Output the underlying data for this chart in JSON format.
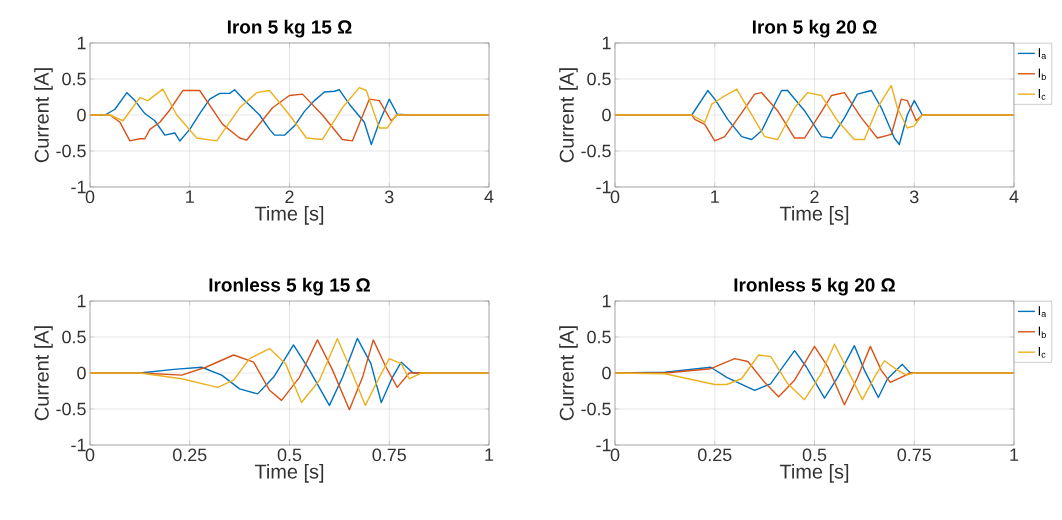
{
  "chart_data": [
    {
      "type": "line",
      "title": "Iron 5 kg 15 Ω",
      "xlabel": "Time [s]",
      "ylabel": "Current [A]",
      "xlim": [
        0,
        4
      ],
      "ylim": [
        -1,
        1
      ],
      "xticks": [
        0,
        1,
        2,
        3,
        4
      ],
      "yticks": [
        -1,
        -0.5,
        0,
        0.5,
        1
      ],
      "grid": true,
      "series": [
        {
          "color": "#0072bd",
          "x": [
            0,
            0.15,
            0.25,
            0.37,
            0.45,
            0.55,
            0.65,
            0.75,
            0.85,
            0.9,
            1.0,
            1.1,
            1.2,
            1.3,
            1.4,
            1.45,
            1.55,
            1.7,
            1.8,
            1.85,
            1.95,
            2.05,
            2.15,
            2.25,
            2.35,
            2.45,
            2.5,
            2.6,
            2.75,
            2.82,
            2.9,
            3.0,
            3.08,
            3.2,
            4
          ],
          "values": [
            0,
            0,
            0.08,
            0.31,
            0.2,
            0.02,
            -0.08,
            -0.28,
            -0.25,
            -0.36,
            -0.2,
            0.02,
            0.22,
            0.3,
            0.3,
            0.35,
            0.2,
            0,
            -0.2,
            -0.28,
            -0.28,
            -0.15,
            0.05,
            0.2,
            0.32,
            0.33,
            0.35,
            0.15,
            -0.1,
            -0.41,
            -0.1,
            0.22,
            0.01,
            0,
            0
          ]
        },
        {
          "color": "#d95319",
          "x": [
            0,
            0.2,
            0.3,
            0.4,
            0.5,
            0.55,
            0.6,
            0.7,
            0.8,
            0.93,
            1.1,
            1.33,
            1.5,
            1.57,
            1.83,
            2.0,
            2.13,
            2.33,
            2.53,
            2.63,
            2.8,
            2.9,
            3.02,
            3.08,
            3.2,
            4
          ],
          "values": [
            0,
            0,
            -0.1,
            -0.36,
            -0.33,
            -0.33,
            -0.2,
            -0.1,
            0.07,
            0.34,
            0.34,
            -0.13,
            -0.32,
            -0.35,
            0.1,
            0.27,
            0.29,
            0,
            -0.34,
            -0.36,
            0.22,
            0.2,
            -0.08,
            0,
            0,
            0
          ]
        },
        {
          "color": "#edb120",
          "x": [
            0,
            0.2,
            0.33,
            0.5,
            0.58,
            0.73,
            0.87,
            1.07,
            1.27,
            1.5,
            1.67,
            1.8,
            2.0,
            2.17,
            2.33,
            2.53,
            2.7,
            2.77,
            2.9,
            2.98,
            3.07,
            3.2,
            4
          ],
          "values": [
            0,
            0,
            -0.08,
            0.24,
            0.2,
            0.36,
            0,
            -0.32,
            -0.36,
            0.1,
            0.31,
            0.34,
            0,
            -0.32,
            -0.34,
            0.1,
            0.38,
            0.34,
            -0.18,
            -0.18,
            0,
            0,
            0
          ]
        }
      ]
    },
    {
      "type": "line",
      "title": "Iron 5 kg 20 Ω",
      "xlabel": "Time [s]",
      "ylabel": "Current [A]",
      "xlim": [
        0,
        4
      ],
      "ylim": [
        -1,
        1
      ],
      "xticks": [
        0,
        1,
        2,
        3,
        4
      ],
      "yticks": [
        -1,
        -0.5,
        0,
        0.5,
        1
      ],
      "grid": true,
      "legend": "top right",
      "series": [
        {
          "name": "I$_{a}$",
          "color": "#0072bd",
          "x": [
            0,
            0.77,
            0.93,
            1.0,
            1.13,
            1.27,
            1.37,
            1.47,
            1.6,
            1.67,
            1.73,
            1.9,
            2.07,
            2.17,
            2.3,
            2.43,
            2.57,
            2.67,
            2.8,
            2.85,
            2.93,
            3.0,
            3.08,
            3.2,
            4
          ],
          "values": [
            0,
            0,
            0.34,
            0.22,
            -0.06,
            -0.3,
            -0.34,
            -0.22,
            0.15,
            0.34,
            0.34,
            0.06,
            -0.3,
            -0.32,
            -0.04,
            0.29,
            0.34,
            0.1,
            -0.32,
            -0.41,
            0,
            0.2,
            0,
            0,
            0
          ]
        },
        {
          "name": "I$_{b}$",
          "color": "#d95319",
          "x": [
            0,
            0.77,
            0.8,
            0.9,
            1.0,
            1.1,
            1.27,
            1.4,
            1.47,
            1.63,
            1.8,
            1.9,
            2.03,
            2.17,
            2.3,
            2.47,
            2.63,
            2.77,
            2.87,
            2.93,
            3.02,
            3.08,
            3.2,
            4
          ],
          "values": [
            0,
            0,
            -0.06,
            -0.13,
            -0.36,
            -0.3,
            0.03,
            0.29,
            0.31,
            0.06,
            -0.32,
            -0.32,
            -0.04,
            0.27,
            0.31,
            -0.04,
            -0.32,
            -0.27,
            0.22,
            0.2,
            -0.08,
            0,
            0,
            0
          ]
        },
        {
          "name": "I$_{c}$",
          "color": "#edb120",
          "x": [
            0,
            0.77,
            0.9,
            0.97,
            1.07,
            1.22,
            1.33,
            1.5,
            1.63,
            1.8,
            1.93,
            2.07,
            2.23,
            2.4,
            2.5,
            2.63,
            2.77,
            2.83,
            2.93,
            3.0,
            3.08,
            3.2,
            4
          ],
          "values": [
            0,
            0,
            -0.1,
            0.15,
            0.24,
            0.36,
            0.1,
            -0.3,
            -0.34,
            0.1,
            0.31,
            0.27,
            -0.08,
            -0.34,
            -0.34,
            0.1,
            0.41,
            0.1,
            -0.18,
            -0.15,
            0,
            0,
            0
          ]
        }
      ]
    },
    {
      "type": "line",
      "title": "Ironless 5 kg 15 Ω",
      "xlabel": "Time [s]",
      "ylabel": "Current [A]",
      "xlim": [
        0,
        1
      ],
      "ylim": [
        -1,
        1
      ],
      "xticks": [
        0,
        0.25,
        0.5,
        0.75,
        1
      ],
      "yticks": [
        -1,
        -0.5,
        0,
        0.5,
        1
      ],
      "grid": true,
      "series": [
        {
          "color": "#0072bd",
          "x": [
            0,
            0.125,
            0.21,
            0.28,
            0.33,
            0.375,
            0.42,
            0.46,
            0.51,
            0.55,
            0.6,
            0.633,
            0.67,
            0.704,
            0.73,
            0.758,
            0.78,
            0.81,
            0.85,
            1
          ],
          "values": [
            0,
            0,
            0.05,
            0.08,
            -0.03,
            -0.22,
            -0.29,
            -0.06,
            0.39,
            0.04,
            -0.45,
            -0.06,
            0.48,
            0.13,
            -0.41,
            -0.06,
            0.15,
            0,
            0,
            0
          ]
        },
        {
          "color": "#d95319",
          "x": [
            0,
            0.125,
            0.23,
            0.29,
            0.36,
            0.41,
            0.45,
            0.48,
            0.525,
            0.57,
            0.608,
            0.65,
            0.683,
            0.71,
            0.742,
            0.77,
            0.8,
            0.85,
            1
          ],
          "values": [
            0,
            0,
            -0.03,
            0.08,
            0.25,
            0.15,
            -0.24,
            -0.38,
            -0.06,
            0.46,
            0.04,
            -0.51,
            -0.06,
            0.46,
            0.08,
            -0.2,
            0,
            0,
            0
          ]
        },
        {
          "color": "#edb120",
          "x": [
            0,
            0.125,
            0.23,
            0.32,
            0.36,
            0.4,
            0.45,
            0.49,
            0.53,
            0.575,
            0.62,
            0.658,
            0.69,
            0.725,
            0.75,
            0.78,
            0.8,
            0.83,
            0.86,
            1
          ],
          "values": [
            0,
            0,
            -0.08,
            -0.2,
            -0.1,
            0.2,
            0.34,
            0.13,
            -0.41,
            -0.1,
            0.48,
            -0.01,
            -0.45,
            -0.06,
            0.2,
            0.13,
            -0.08,
            0,
            0,
            0
          ]
        }
      ]
    },
    {
      "type": "line",
      "title": "Ironless 5 kg 20 Ω",
      "xlabel": "Time [s]",
      "ylabel": "Current [A]",
      "xlim": [
        0,
        1
      ],
      "ylim": [
        -1,
        1
      ],
      "xticks": [
        0,
        0.25,
        0.5,
        0.75,
        1
      ],
      "yticks": [
        -1,
        -0.5,
        0,
        0.5,
        1
      ],
      "grid": true,
      "legend": "top right",
      "series": [
        {
          "name": "I$_{a}$",
          "color": "#0072bd",
          "x": [
            0,
            0.125,
            0.24,
            0.28,
            0.35,
            0.39,
            0.45,
            0.48,
            0.525,
            0.558,
            0.6,
            0.625,
            0.66,
            0.683,
            0.72,
            0.74,
            0.78,
            1
          ],
          "values": [
            0,
            0.01,
            0.08,
            -0.06,
            -0.24,
            -0.15,
            0.31,
            0.08,
            -0.35,
            -0.06,
            0.38,
            0.04,
            -0.34,
            -0.08,
            0.12,
            0,
            0,
            0
          ]
        },
        {
          "name": "I$_{b}$",
          "color": "#d95319",
          "x": [
            0,
            0.125,
            0.24,
            0.3,
            0.333,
            0.375,
            0.41,
            0.45,
            0.5,
            0.533,
            0.575,
            0.608,
            0.64,
            0.667,
            0.69,
            0.717,
            0.74,
            0.78,
            1
          ],
          "values": [
            0,
            0,
            0.06,
            0.2,
            0.16,
            -0.13,
            -0.33,
            -0.1,
            0.37,
            0.09,
            -0.44,
            -0.06,
            0.37,
            0.04,
            -0.13,
            -0.06,
            0,
            0,
            0
          ]
        },
        {
          "name": "I$_{c}$",
          "color": "#edb120",
          "x": [
            0,
            0.125,
            0.25,
            0.28,
            0.317,
            0.36,
            0.39,
            0.433,
            0.475,
            0.517,
            0.55,
            0.583,
            0.62,
            0.65,
            0.675,
            0.708,
            0.73,
            0.75,
            0.78,
            1
          ],
          "values": [
            0,
            -0.01,
            -0.16,
            -0.16,
            -0.08,
            0.25,
            0.23,
            -0.15,
            -0.37,
            -0.01,
            0.4,
            0.04,
            -0.37,
            -0.06,
            0.17,
            0.04,
            -0.03,
            0,
            0,
            0
          ]
        }
      ]
    }
  ]
}
